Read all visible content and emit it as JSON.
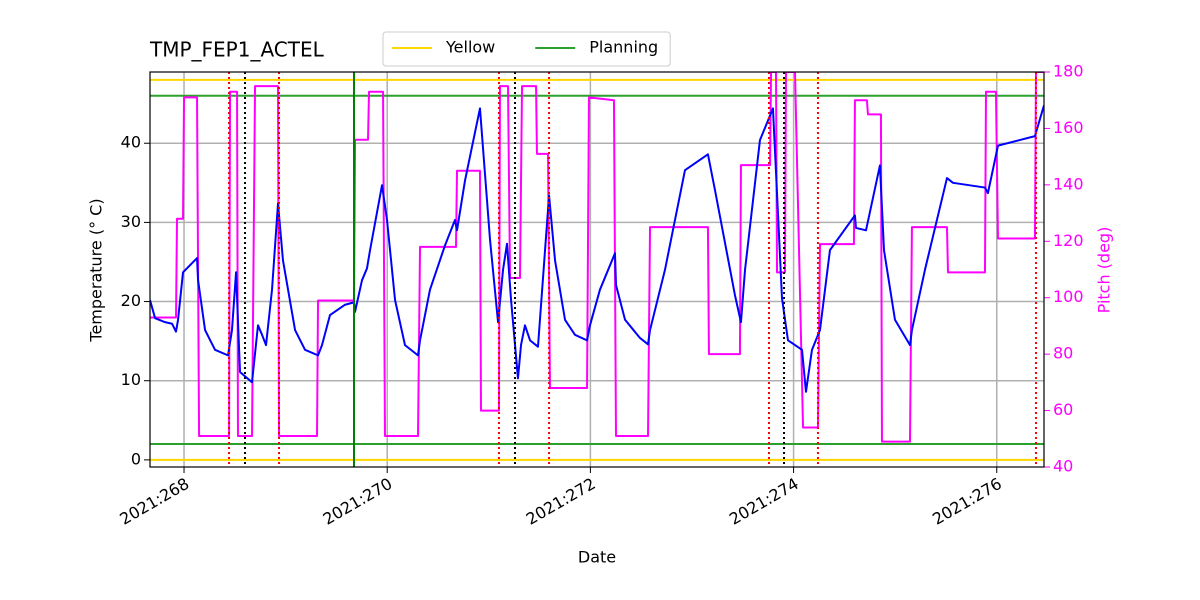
{
  "chart_data": {
    "type": "line",
    "title": "TMP_FEP1_ACTEL",
    "xlabel": "Date",
    "ylabel": "Temperature ($^\\circ$C)",
    "y2label": "Pitch (deg)",
    "xlim": [
      267.665,
      276.465
    ],
    "xticks": [
      {
        "value": 268,
        "label": "2021:268"
      },
      {
        "value": 270,
        "label": "2021:270"
      },
      {
        "value": 272,
        "label": "2021:272"
      },
      {
        "value": 274,
        "label": "2021:274"
      },
      {
        "value": 276,
        "label": "2021:276"
      }
    ],
    "ylim": [
      -0.9,
      49
    ],
    "yticks": [
      0,
      10,
      20,
      30,
      40
    ],
    "y2lim": [
      40,
      180
    ],
    "y2ticks": [
      40,
      60,
      80,
      100,
      120,
      140,
      160,
      180
    ],
    "grid": true,
    "legend": "top-center",
    "limit_lines": [
      {
        "name": "Yellow",
        "color": "#ffd700",
        "values": [
          0,
          48
        ]
      },
      {
        "name": "Planning",
        "color": "#2ca02c",
        "values": [
          2,
          46
        ]
      }
    ],
    "events": [
      {
        "color": "#ff0000",
        "style": "dotted",
        "x": [
          268.443,
          268.935,
          271.1,
          271.593,
          273.758,
          274.24,
          276.386
        ]
      },
      {
        "color": "#000000",
        "style": "dotted",
        "x": [
          268.6,
          271.258,
          273.906
        ]
      },
      {
        "color": "#008000",
        "style": "solid",
        "x": [
          269.673
        ]
      }
    ],
    "series": [
      {
        "color": "#0000ff",
        "x": [
          267.665,
          267.715,
          267.813,
          267.882,
          267.921,
          267.941,
          267.99,
          268.128,
          268.138,
          268.207,
          268.305,
          268.433,
          268.472,
          268.512,
          268.551,
          268.669,
          268.728,
          268.768,
          268.807,
          268.866,
          268.925,
          268.974,
          269.093,
          269.191,
          269.319,
          269.358,
          269.437,
          269.585,
          269.673,
          269.683,
          269.752,
          269.801,
          269.831,
          269.949,
          269.998,
          270.077,
          270.175,
          270.303,
          270.323,
          270.421,
          270.569,
          270.667,
          270.687,
          270.766,
          270.913,
          271.012,
          271.091,
          271.14,
          271.179,
          271.219,
          271.287,
          271.317,
          271.356,
          271.406,
          271.484,
          271.593,
          271.652,
          271.75,
          271.848,
          271.967,
          271.996,
          272.094,
          272.242,
          272.252,
          272.341,
          272.488,
          272.567,
          272.587,
          272.734,
          272.931,
          273.157,
          273.226,
          273.423,
          273.482,
          273.522,
          273.669,
          273.797,
          273.886,
          273.945,
          274.083,
          274.122,
          274.181,
          274.26,
          274.358,
          274.604,
          274.614,
          274.713,
          274.85,
          274.89,
          274.998,
          275.146,
          275.165,
          275.293,
          275.51,
          275.569,
          275.884,
          275.913,
          276.012,
          276.376,
          276.465
        ],
        "values": [
          20.2,
          17.9,
          17.4,
          17.2,
          16.2,
          17.7,
          23.7,
          25.5,
          22.7,
          16.4,
          13.9,
          13.2,
          16.4,
          23.7,
          11.1,
          9.8,
          17.0,
          15.8,
          14.5,
          21.5,
          32.4,
          25.2,
          16.4,
          13.9,
          13.2,
          14.5,
          18.3,
          19.6,
          19.9,
          18.7,
          22.7,
          24.2,
          26.5,
          34.7,
          30.3,
          20.2,
          14.5,
          13.2,
          15.1,
          21.5,
          27.1,
          30.3,
          29.0,
          35.3,
          44.4,
          27.8,
          17.4,
          24.0,
          27.3,
          20.2,
          10.3,
          14.5,
          17.0,
          15.1,
          14.3,
          33.4,
          25.2,
          17.7,
          15.8,
          15.1,
          17.0,
          21.5,
          26.1,
          22.1,
          17.7,
          15.4,
          14.6,
          16.4,
          24.0,
          36.6,
          38.6,
          34.1,
          20.8,
          17.4,
          24.0,
          40.4,
          44.4,
          20.4,
          15.1,
          13.9,
          8.6,
          13.9,
          16.4,
          26.5,
          30.9,
          29.3,
          29.0,
          37.2,
          26.5,
          17.7,
          14.5,
          16.4,
          24.0,
          35.6,
          35.0,
          34.4,
          33.7,
          39.7,
          40.9,
          44.8
        ]
      },
      {
        "color": "#ff00ff",
        "axis": "y2",
        "x": [
          267.665,
          267.921,
          267.931,
          267.99,
          268.0,
          268.128,
          268.148,
          268.443,
          268.453,
          268.522,
          268.531,
          268.669,
          268.699,
          268.925,
          268.935,
          269.309,
          269.319,
          269.673,
          269.683,
          269.811,
          269.821,
          269.959,
          269.978,
          270.303,
          270.323,
          270.677,
          270.687,
          270.913,
          270.923,
          271.1,
          271.11,
          271.189,
          271.209,
          271.307,
          271.327,
          271.465,
          271.474,
          271.583,
          271.602,
          271.967,
          271.986,
          272.232,
          272.252,
          272.567,
          272.587,
          273.157,
          273.167,
          273.472,
          273.482,
          273.768,
          273.778,
          273.827,
          273.837,
          273.915,
          273.925,
          274.014,
          274.093,
          274.24,
          274.26,
          274.594,
          274.604,
          274.722,
          274.732,
          274.86,
          274.87,
          275.146,
          275.165,
          275.51,
          275.52,
          275.884,
          275.894,
          275.992,
          276.012,
          276.376,
          276.386,
          276.465
        ],
        "values": [
          93,
          93,
          128,
          128,
          171,
          171,
          51,
          51,
          173,
          173,
          51,
          51,
          175,
          175,
          51,
          51,
          99,
          99,
          156,
          156,
          173,
          173,
          51,
          51,
          118,
          118,
          145,
          145,
          60,
          60,
          175,
          175,
          107,
          107,
          175,
          175,
          151,
          151,
          68,
          68,
          171,
          170,
          51,
          51,
          125,
          125,
          80,
          80,
          147,
          147,
          180,
          180,
          109,
          109,
          180,
          180,
          54,
          54,
          119,
          119,
          170,
          170,
          165,
          165,
          49,
          49,
          125,
          125,
          109,
          109,
          173,
          173,
          121,
          121,
          180,
          180
        ]
      }
    ]
  }
}
